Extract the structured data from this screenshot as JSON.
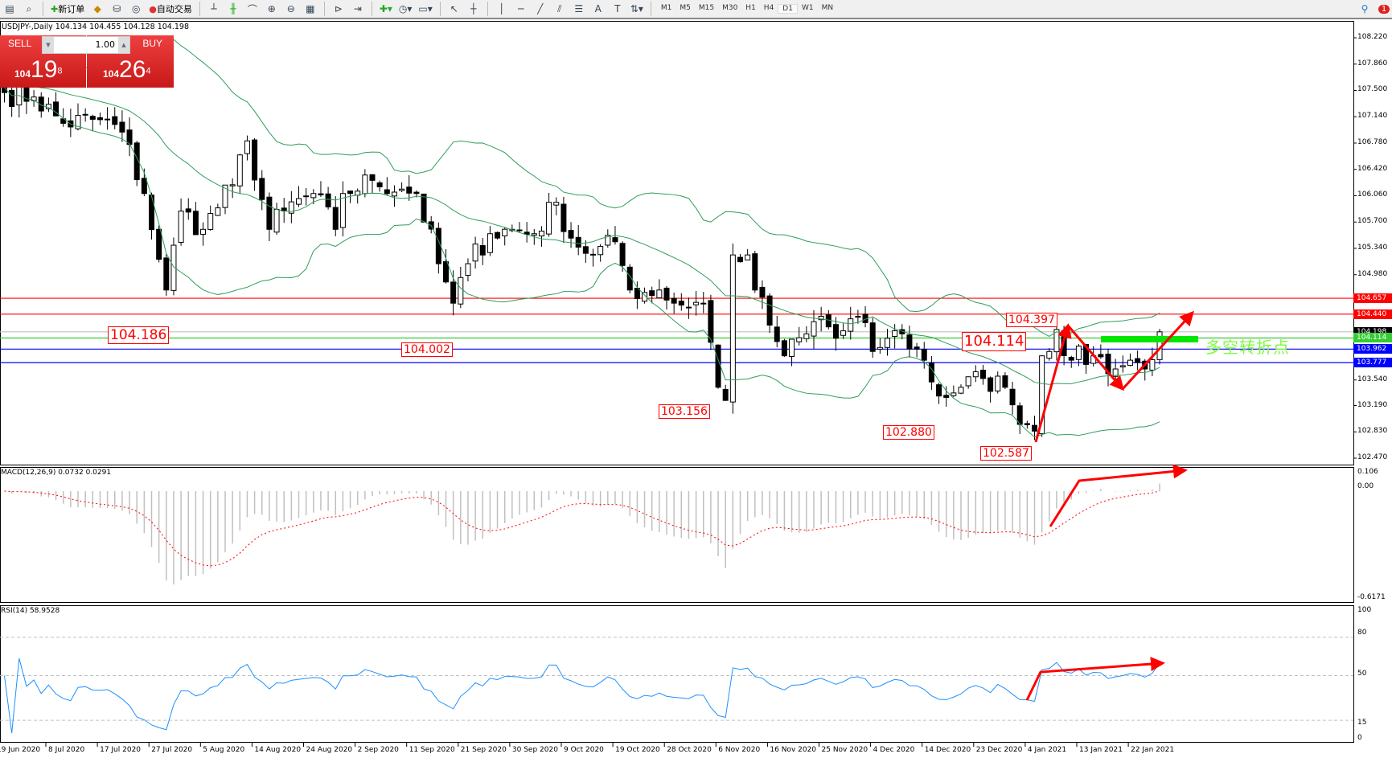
{
  "toolbar": {
    "new_order": "新订单",
    "auto_trading": "自动交易",
    "timeframes": [
      "M1",
      "M5",
      "M15",
      "M30",
      "H1",
      "H4",
      "D1",
      "W1",
      "MN"
    ],
    "active_timeframe": "D1",
    "notification_count": "1"
  },
  "header": {
    "symbol_line": "USDJPY-,Daily  104.134 104.455 104.128 104.198"
  },
  "trade_panel": {
    "sell_label": "SELL",
    "buy_label": "BUY",
    "lot": "1.00",
    "sell_big": "104",
    "sell_main": "19",
    "sell_sup": "8",
    "buy_big": "104",
    "buy_main": "26",
    "buy_sup": "4"
  },
  "price_axis": [
    "108.220",
    "107.860",
    "107.500",
    "107.140",
    "106.780",
    "106.420",
    "106.060",
    "105.700",
    "105.340",
    "104.980",
    "103.540",
    "103.190",
    "102.830",
    "102.470"
  ],
  "levels": [
    {
      "price": "104.657",
      "color": "#ff0000"
    },
    {
      "price": "104.440",
      "color": "#ff0000"
    },
    {
      "price": "104.198",
      "color": "#000000",
      "line": "#c0c0c0"
    },
    {
      "price": "104.114",
      "color": "#33cc33"
    },
    {
      "price": "103.962",
      "color": "#0000ff"
    },
    {
      "price": "103.777",
      "color": "#0000ff"
    }
  ],
  "annotations": {
    "a1": "104.186",
    "a2": "104.002",
    "a3": "103.156",
    "a4": "102.880",
    "a5": "102.587",
    "a6": "104.114",
    "a7": "104.397",
    "turning_point": "多空转折点"
  },
  "macd": {
    "label": "MACD(12,26,9) 0.0732 0.0291",
    "max": "0.106",
    "zero": "0.00",
    "min": "-0.6171"
  },
  "rsi": {
    "label": "RSI(14) 58.9528",
    "levels": [
      "100",
      "80",
      "50",
      "15",
      "0"
    ]
  },
  "dates": [
    "19 Jun 2020",
    "8 Jul 2020",
    "17 Jul 2020",
    "27 Jul 2020",
    "5 Aug 2020",
    "14 Aug 2020",
    "24 Aug 2020",
    "2 Sep 2020",
    "11 Sep 2020",
    "21 Sep 2020",
    "30 Sep 2020",
    "9 Oct 2020",
    "19 Oct 2020",
    "28 Oct 2020",
    "6 Nov 2020",
    "16 Nov 2020",
    "25 Nov 2020",
    "4 Dec 2020",
    "14 Dec 2020",
    "23 Dec 2020",
    "4 Jan 2021",
    "13 Jan 2021",
    "22 Jan 2021"
  ],
  "chart_data": {
    "type": "candlestick",
    "symbol": "USDJPY",
    "timeframe": "Daily",
    "ylim": [
      102.47,
      108.22
    ],
    "close_path": [
      [
        0,
        107.47
      ],
      [
        4,
        107.41
      ],
      [
        8,
        107.05
      ],
      [
        13,
        107.1
      ],
      [
        16,
        106.93
      ],
      [
        19,
        106.09
      ],
      [
        21,
        105.19
      ],
      [
        22,
        104.77
      ],
      [
        24,
        105.85
      ],
      [
        27,
        105.6
      ],
      [
        31,
        106.21
      ],
      [
        33,
        106.81
      ],
      [
        36,
        105.6
      ],
      [
        38,
        105.85
      ],
      [
        42,
        106.09
      ],
      [
        45,
        105.6
      ],
      [
        46,
        106.09
      ],
      [
        50,
        106.27
      ],
      [
        54,
        106.15
      ],
      [
        56,
        106.09
      ],
      [
        59,
        105.13
      ],
      [
        61,
        104.59
      ],
      [
        63,
        105.13
      ],
      [
        66,
        105.54
      ],
      [
        69,
        105.6
      ],
      [
        72,
        105.54
      ],
      [
        75,
        105.97
      ],
      [
        77,
        105.48
      ],
      [
        80,
        105.25
      ],
      [
        83,
        105.43
      ],
      [
        85,
        104.77
      ],
      [
        89,
        104.77
      ],
      [
        91,
        104.59
      ],
      [
        95,
        104.59
      ],
      [
        97,
        103.44
      ],
      [
        98,
        103.26
      ],
      [
        99,
        105.25
      ],
      [
        101,
        105.25
      ],
      [
        102,
        104.77
      ],
      [
        104,
        104.29
      ],
      [
        106,
        103.87
      ],
      [
        109,
        104.17
      ],
      [
        111,
        104.41
      ],
      [
        113,
        104.11
      ],
      [
        116,
        104.41
      ],
      [
        118,
        103.93
      ],
      [
        120,
        104.11
      ],
      [
        122,
        104.17
      ],
      [
        125,
        103.81
      ],
      [
        127,
        103.32
      ],
      [
        130,
        103.44
      ],
      [
        133,
        103.56
      ],
      [
        136,
        103.44
      ],
      [
        137,
        103.2
      ],
      [
        140,
        102.84
      ],
      [
        141,
        103.87
      ],
      [
        143,
        104.23
      ],
      [
        145,
        103.81
      ],
      [
        148,
        103.87
      ],
      [
        151,
        103.69
      ],
      [
        153,
        103.81
      ],
      [
        155,
        103.69
      ],
      [
        157,
        104.198
      ]
    ],
    "indicators": [
      "Bollinger Bands",
      "MACD(12,26,9)",
      "RSI(14)"
    ]
  }
}
